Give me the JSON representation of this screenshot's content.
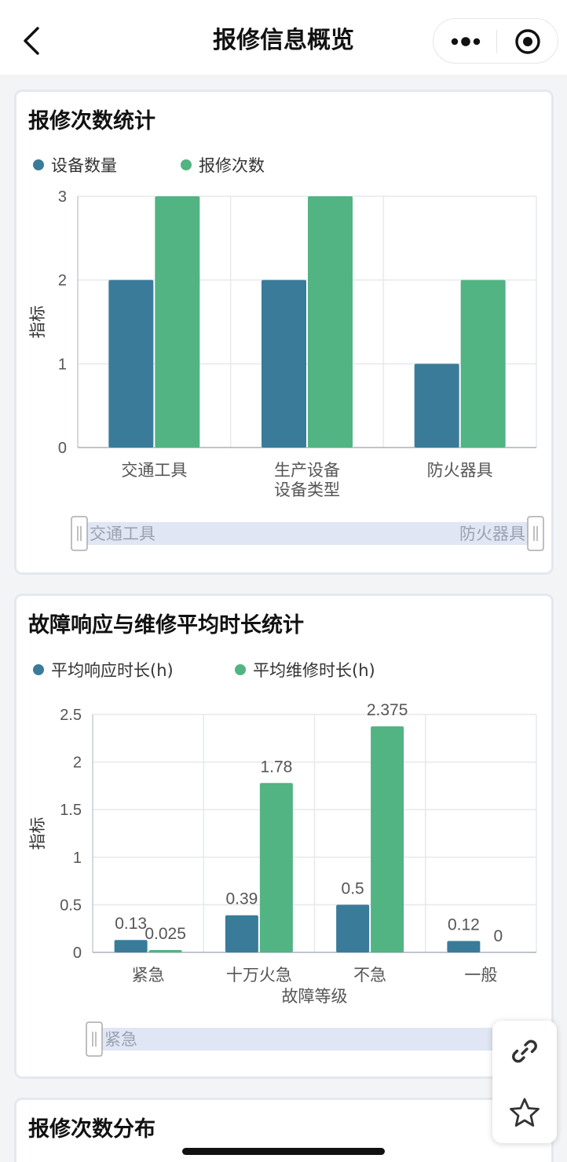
{
  "nav": {
    "title": "报修信息概览"
  },
  "cards": [
    {
      "title": "报修次数统计",
      "chart_data": {
        "type": "bar",
        "categories": [
          "交通工具",
          "生产设备",
          "防火器具"
        ],
        "series": [
          {
            "name": "设备数量",
            "values": [
              2,
              2,
              1
            ],
            "color": "#3a7b9a"
          },
          {
            "name": "报修次数",
            "values": [
              3,
              3,
              2
            ],
            "color": "#52b383"
          }
        ],
        "yticks": [
          "0",
          "1",
          "2",
          "3"
        ],
        "ylim": [
          0,
          3
        ],
        "ylabel": "指标",
        "xlabel": "设备类型",
        "data_labels": false,
        "grid": true,
        "legend": "top-left",
        "datazoom": {
          "start_label": "交通工具",
          "end_label": "防火器具",
          "range": [
            0,
            1
          ]
        }
      }
    },
    {
      "title": "故障响应与维修平均时长统计",
      "chart_data": {
        "type": "bar",
        "categories": [
          "紧急",
          "十万火急",
          "不急",
          "一般"
        ],
        "series": [
          {
            "name": "平均响应时长(h)",
            "values": [
              0.13,
              0.39,
              0.5,
              0.12
            ],
            "labels": [
              "0.13",
              "0.39",
              "0.5",
              "0.12"
            ],
            "color": "#3a7b9a"
          },
          {
            "name": "平均维修时长(h)",
            "values": [
              0.025,
              1.78,
              2.375,
              0
            ],
            "labels": [
              "0.025",
              "1.78",
              "2.375",
              "0"
            ],
            "color": "#52b383"
          }
        ],
        "yticks": [
          "0",
          "0.5",
          "1",
          "1.5",
          "2",
          "2.5"
        ],
        "ylim": [
          0,
          2.5
        ],
        "ylabel": "指标",
        "xlabel": "故障等级",
        "data_labels": true,
        "grid": true,
        "legend": "top-left",
        "datazoom": {
          "start_label": "紧急",
          "end_label": "",
          "range": [
            0,
            1
          ]
        }
      }
    },
    {
      "title": "报修次数分布"
    }
  ],
  "floating_actions": [
    {
      "icon": "link-icon"
    },
    {
      "icon": "star-icon"
    }
  ]
}
